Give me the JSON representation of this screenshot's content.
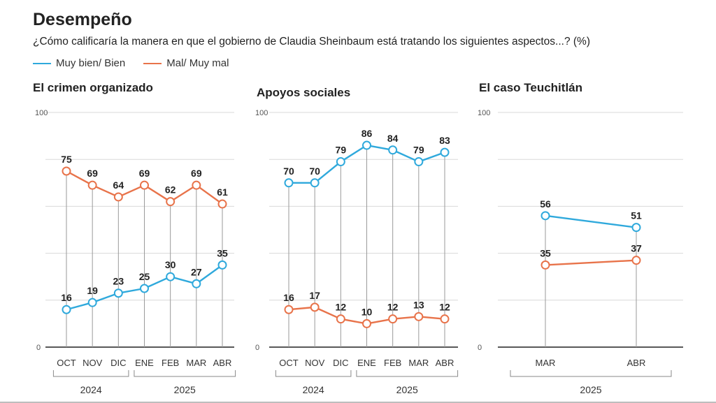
{
  "header": {
    "title": "Desempeño",
    "subtitle": "¿Cómo calificaría la manera en que el gobierno de Claudia Sheinbaum está tratando los siguientes aspectos...? (%)"
  },
  "legend": [
    {
      "label": "Muy bien/ Bien",
      "color": "#2fa9dc"
    },
    {
      "label": "Mal/ Muy mal",
      "color": "#e8734a"
    }
  ],
  "colors": {
    "good": "#2fa9dc",
    "bad": "#e8734a",
    "grid": "#d9d9d9",
    "axis": "#222222"
  },
  "chart_data": [
    {
      "type": "line",
      "title": "El crimen organizado",
      "categories": [
        "OCT",
        "NOV",
        "DIC",
        "ENE",
        "FEB",
        "MAR",
        "ABR"
      ],
      "year_groups": [
        {
          "label": "2024",
          "count": 3
        },
        {
          "label": "2025",
          "count": 4
        }
      ],
      "ylim": [
        0,
        100
      ],
      "yticks": [
        "0",
        "100"
      ],
      "series": [
        {
          "name": "Muy bien/ Bien",
          "values": [
            16,
            19,
            23,
            25,
            30,
            27,
            35
          ]
        },
        {
          "name": "Mal/ Muy mal",
          "values": [
            75,
            69,
            64,
            69,
            62,
            69,
            61
          ]
        }
      ]
    },
    {
      "type": "line",
      "title": "Apoyos sociales",
      "categories": [
        "OCT",
        "NOV",
        "DIC",
        "ENE",
        "FEB",
        "MAR",
        "ABR"
      ],
      "year_groups": [
        {
          "label": "2024",
          "count": 3
        },
        {
          "label": "2025",
          "count": 4
        }
      ],
      "ylim": [
        0,
        100
      ],
      "yticks": [
        "0",
        "100"
      ],
      "series": [
        {
          "name": "Muy bien/ Bien",
          "values": [
            70,
            70,
            79,
            86,
            84,
            79,
            83
          ]
        },
        {
          "name": "Mal/ Muy mal",
          "values": [
            16,
            17,
            12,
            10,
            12,
            13,
            12
          ]
        }
      ]
    },
    {
      "type": "line",
      "title": "El caso Teuchitlán",
      "categories": [
        "MAR",
        "ABR"
      ],
      "year_groups": [
        {
          "label": "2025",
          "count": 2
        }
      ],
      "ylim": [
        0,
        100
      ],
      "yticks": [
        "0",
        "100"
      ],
      "series": [
        {
          "name": "Muy bien/ Bien",
          "values": [
            56,
            51
          ]
        },
        {
          "name": "Mal/ Muy mal",
          "values": [
            35,
            37
          ]
        }
      ]
    }
  ]
}
